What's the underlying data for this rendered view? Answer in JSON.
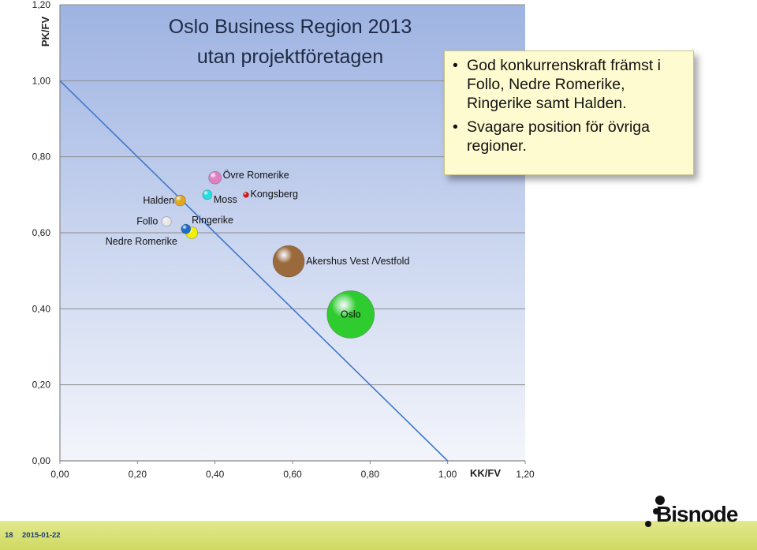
{
  "chart_data": {
    "type": "scatter",
    "title": "Oslo Business Region 2013",
    "subtitle": "utan projektföretagen",
    "xlabel": "KK/FV",
    "ylabel": "PK/FV",
    "xlim": [
      0,
      1.2
    ],
    "ylim": [
      0,
      1.2
    ],
    "xticks": [
      "0,00",
      "0,20",
      "0,40",
      "0,60",
      "0,80",
      "1,00",
      "1,20"
    ],
    "yticks": [
      "0,00",
      "0,20",
      "0,40",
      "0,60",
      "0,80",
      "1,00",
      "1,20"
    ],
    "grid": "horizontal",
    "reference_line": {
      "from": [
        0,
        1.0
      ],
      "to": [
        1.0,
        0
      ]
    },
    "points": [
      {
        "label": "Oslo",
        "x": 0.75,
        "y": 0.385,
        "size": 30,
        "color": "#2ecc2e"
      },
      {
        "label": "Akershus Vest /Vestfold",
        "x": 0.59,
        "y": 0.525,
        "size": 20,
        "color": "#9a6a3c"
      },
      {
        "label": "Övre Romerike",
        "x": 0.4,
        "y": 0.745,
        "size": 8,
        "color": "#e080c0"
      },
      {
        "label": "Moss",
        "x": 0.38,
        "y": 0.7,
        "size": 6,
        "color": "#20e0e0"
      },
      {
        "label": "Kongsberg",
        "x": 0.48,
        "y": 0.7,
        "size": 3.5,
        "color": "#dd1111"
      },
      {
        "label": "Halden",
        "x": 0.31,
        "y": 0.685,
        "size": 7,
        "color": "#e0a820"
      },
      {
        "label": "Follo",
        "x": 0.275,
        "y": 0.63,
        "size": 6,
        "color": "#e8e8e8"
      },
      {
        "label": "Ringerike",
        "x": 0.34,
        "y": 0.6,
        "size": 7.5,
        "color": "#f0f000"
      },
      {
        "label": "Nedre Romerike",
        "x": 0.325,
        "y": 0.61,
        "size": 6,
        "color": "#1e6ec8"
      }
    ]
  },
  "callout": {
    "bullets": [
      "God konkurrenskraft främst i Follo, Nedre Romerike, Ringerike samt Halden.",
      "Svagare position för övriga regioner."
    ]
  },
  "footer": {
    "page_number": "18",
    "date": "2015-01-22",
    "logo": "Bisnode"
  }
}
